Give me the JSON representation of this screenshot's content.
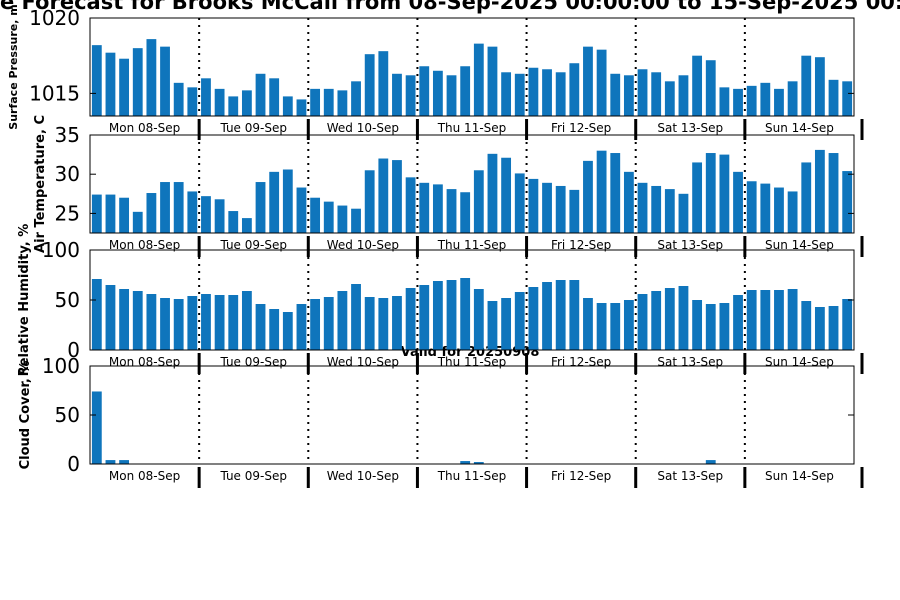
{
  "title": "e Forecast for Brooks McCall from 08-Sep-2025 00:00:00 to 15-Sep-2025 00:",
  "valid_label": "Valid for 20250908",
  "colors": {
    "bar": "#0f75bc",
    "axis": "#000000"
  },
  "day_labels": [
    "Mon 08-Sep",
    "Tue 09-Sep",
    "Wed 10-Sep",
    "Thu 11-Sep",
    "Fri 12-Sep",
    "Sat 13-Sep",
    "Sun 14-Sep"
  ],
  "chart_data": [
    {
      "type": "bar",
      "ylabel": "Surface Pressure, m",
      "ylim": [
        1013.5,
        1020
      ],
      "yticks": [
        "1015",
        "1020"
      ],
      "ytick_values": [
        1015,
        1020
      ],
      "values": [
        1018.2,
        1017.7,
        1017.3,
        1018.0,
        1018.6,
        1018.1,
        1015.7,
        1015.4,
        1016.0,
        1015.3,
        1014.8,
        1015.2,
        1016.3,
        1016.0,
        1014.8,
        1014.6,
        1015.3,
        1015.3,
        1015.2,
        1015.8,
        1017.6,
        1017.8,
        1016.3,
        1016.2,
        1016.8,
        1016.5,
        1016.2,
        1016.8,
        1018.3,
        1018.1,
        1016.4,
        1016.3,
        1016.7,
        1016.6,
        1016.4,
        1017.0,
        1018.1,
        1017.9,
        1016.3,
        1016.2,
        1016.6,
        1016.4,
        1015.8,
        1016.2,
        1017.5,
        1017.2,
        1015.4,
        1015.3,
        1015.5,
        1015.7,
        1015.3,
        1015.8,
        1017.5,
        1017.4,
        1015.9,
        1015.8
      ]
    },
    {
      "type": "bar",
      "ylabel": "Air Temperature, C",
      "ylim": [
        22.5,
        35
      ],
      "yticks": [
        "25",
        "30",
        "35"
      ],
      "ytick_values": [
        25,
        30,
        35
      ],
      "values": [
        27.4,
        27.4,
        27.0,
        25.2,
        27.6,
        29.0,
        29.0,
        27.8,
        27.2,
        26.8,
        25.3,
        24.4,
        29.0,
        30.3,
        30.6,
        28.3,
        27.0,
        26.5,
        26.0,
        25.6,
        30.5,
        32.0,
        31.8,
        29.6,
        28.9,
        28.7,
        28.1,
        27.7,
        30.5,
        32.6,
        32.1,
        30.1,
        29.4,
        28.9,
        28.5,
        28.0,
        31.7,
        33.0,
        32.7,
        30.3,
        28.9,
        28.5,
        28.1,
        27.5,
        31.5,
        32.7,
        32.5,
        30.3,
        29.1,
        28.8,
        28.3,
        27.8,
        31.5,
        33.1,
        32.7,
        30.4
      ]
    },
    {
      "type": "bar",
      "ylabel": "Relative Humidity, %",
      "ylim": [
        0,
        100
      ],
      "yticks": [
        "0",
        "50",
        "100"
      ],
      "ytick_values": [
        0,
        50,
        100
      ],
      "values": [
        71,
        65,
        61,
        59,
        56,
        52,
        51,
        54,
        56,
        55,
        55,
        59,
        46,
        41,
        38,
        46,
        51,
        53,
        59,
        66,
        53,
        52,
        54,
        62,
        65,
        69,
        70,
        72,
        61,
        49,
        52,
        58,
        63,
        68,
        70,
        70,
        52,
        47,
        47,
        50,
        56,
        59,
        62,
        64,
        50,
        46,
        47,
        55,
        60,
        60,
        60,
        61,
        49,
        43,
        44,
        51
      ]
    },
    {
      "type": "bar",
      "ylabel": "Cloud Cover, %",
      "ylim": [
        0,
        100
      ],
      "yticks": [
        "0",
        "50",
        "100"
      ],
      "ytick_values": [
        0,
        50,
        100
      ],
      "values": [
        74,
        4,
        4,
        0,
        0,
        0,
        0,
        0,
        0,
        0,
        0,
        0,
        0,
        0,
        0,
        0,
        0,
        0,
        0,
        0,
        0,
        0,
        0,
        0,
        0,
        0,
        0,
        3,
        2,
        0,
        0,
        0,
        0,
        0,
        0,
        0,
        0,
        0,
        0,
        0,
        0,
        0,
        0,
        0,
        0,
        4,
        0,
        0,
        0,
        0,
        0,
        0,
        0,
        0,
        0,
        0
      ]
    }
  ]
}
